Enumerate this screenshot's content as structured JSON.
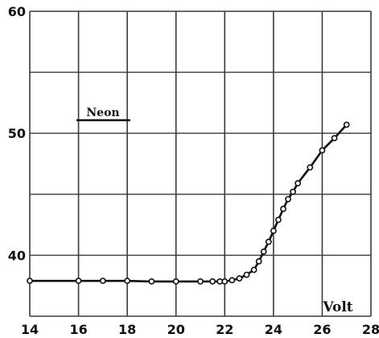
{
  "chart_data": {
    "type": "line",
    "title": "",
    "annotation": "Neon",
    "xlabel": "Volt",
    "ylabel": "",
    "xlim": [
      14,
      28
    ],
    "ylim": [
      35,
      60
    ],
    "x_ticks": [
      14,
      16,
      18,
      20,
      22,
      24,
      26,
      28
    ],
    "y_ticks": [
      40,
      50,
      60
    ],
    "x_grid": [
      14,
      16,
      18,
      20,
      22,
      24,
      26,
      28
    ],
    "y_grid": [
      40,
      45,
      50,
      55,
      60
    ],
    "grid": true,
    "series": [
      {
        "x": [
          14,
          16,
          17,
          18,
          19,
          20,
          21,
          21.5,
          21.8,
          22,
          22.3,
          22.6,
          22.9,
          23.2,
          23.4,
          23.6,
          23.8,
          24,
          24.2,
          24.4,
          24.6,
          24.8,
          25,
          25.5,
          26,
          26.5,
          27
        ],
        "y": [
          37.9,
          37.9,
          37.9,
          37.9,
          37.85,
          37.85,
          37.85,
          37.85,
          37.85,
          37.85,
          37.95,
          38.1,
          38.4,
          38.8,
          39.5,
          40.3,
          41.1,
          42.0,
          42.9,
          43.8,
          44.6,
          45.2,
          45.9,
          47.2,
          48.6,
          49.6,
          50.7
        ]
      }
    ],
    "colors": {
      "line": "#111111",
      "grid": "#3a3a3a",
      "marker_fill": "#ffffff",
      "background": "#ffffff"
    }
  }
}
